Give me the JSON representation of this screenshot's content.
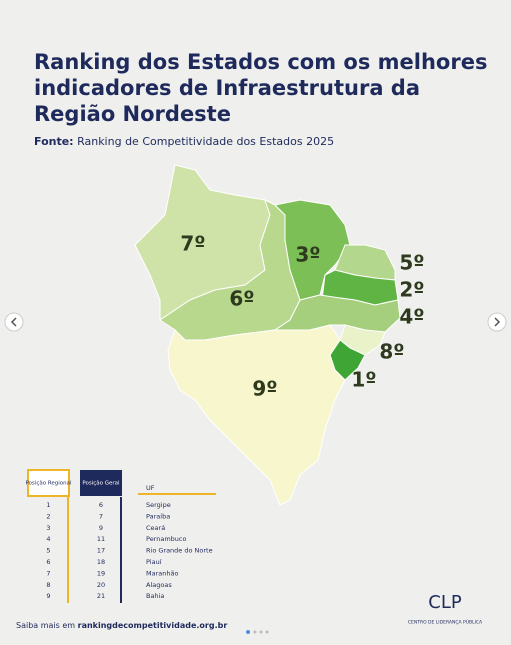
{
  "header": {
    "title_lines": [
      "Ranking dos Estados com os melhores",
      "indicadores de Infraestrutura da",
      "Região Nordeste"
    ],
    "source_label": "Fonte:",
    "source_text": "Ranking de Competitividade dos Estados 2025"
  },
  "map": {
    "labels": [
      {
        "state": "Maranhão",
        "label": "7º"
      },
      {
        "state": "Piauí",
        "label": "6º"
      },
      {
        "state": "Ceará",
        "label": "3º"
      },
      {
        "state": "Rio Grande do Norte",
        "label": "5º"
      },
      {
        "state": "Paraíba",
        "label": "2º"
      },
      {
        "state": "Pernambuco",
        "label": "4º"
      },
      {
        "state": "Alagoas",
        "label": "8º"
      },
      {
        "state": "Sergipe",
        "label": "1º"
      },
      {
        "state": "Bahia",
        "label": "9º"
      }
    ]
  },
  "table": {
    "headers": [
      "Posição Regional",
      "Posição Geral",
      "UF"
    ],
    "rows": [
      [
        1,
        6,
        "Sergipe"
      ],
      [
        2,
        7,
        "Paraíba"
      ],
      [
        3,
        9,
        "Ceará"
      ],
      [
        4,
        11,
        "Pernambuco"
      ],
      [
        5,
        17,
        "Rio Grande do Norte"
      ],
      [
        6,
        18,
        "Piauí"
      ],
      [
        7,
        19,
        "Maranhão"
      ],
      [
        8,
        20,
        "Alagoas"
      ],
      [
        9,
        21,
        "Bahia"
      ]
    ]
  },
  "footer": {
    "prefix": "Saiba mais em",
    "link": "rankingdecompetitividade.org.br"
  },
  "logo": {
    "name": "CLP",
    "subtitle": "CENTRO DE LIDERANÇA PÚBLICA"
  }
}
